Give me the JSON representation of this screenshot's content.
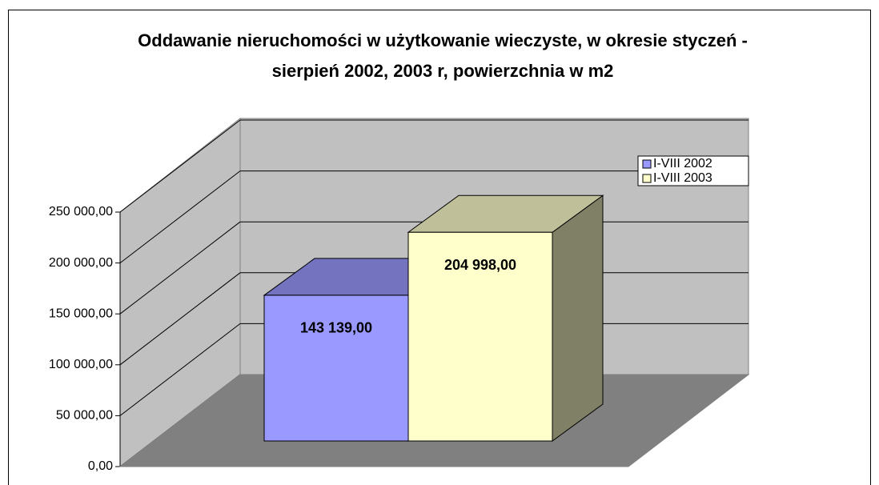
{
  "chart_data": {
    "type": "bar3d",
    "title": "Oddawanie nieruchomości w użytkowanie wieczyste, w okresie styczeń - sierpień 2002, 2003 r, powierzchnia w m2",
    "series": [
      {
        "name": "I-VIII 2002",
        "color": "#9999ff",
        "values": [
          143139
        ],
        "value_labels": [
          "143 139,00"
        ]
      },
      {
        "name": "I-VIII 2003",
        "color": "#ffffcc",
        "values": [
          204998
        ],
        "value_labels": [
          "204 998,00"
        ]
      }
    ],
    "ylim": [
      0,
      250000
    ],
    "yticks": [
      {
        "value": 0,
        "label": "0,00"
      },
      {
        "value": 50000,
        "label": "50 000,00"
      },
      {
        "value": 100000,
        "label": "100 000,00"
      },
      {
        "value": 150000,
        "label": "150 000,00"
      },
      {
        "value": 200000,
        "label": "200 000,00"
      },
      {
        "value": 250000,
        "label": "250 000,00"
      }
    ],
    "grid": true,
    "legend": "top-right"
  }
}
